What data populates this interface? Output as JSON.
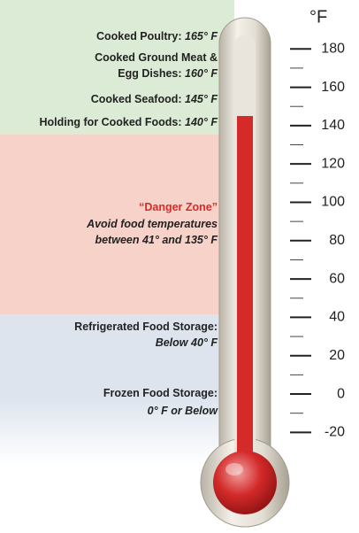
{
  "unit": "°F",
  "scale": {
    "ylim": [
      -30,
      190
    ],
    "ticks": [
      180,
      160,
      140,
      120,
      100,
      80,
      60,
      40,
      20,
      0,
      -20
    ],
    "minor_ticks": [
      170,
      150,
      130,
      110,
      90,
      70,
      50,
      30,
      10,
      -10
    ],
    "mercury": 145,
    "mercury_color": "#d42a2a"
  },
  "zones": [
    {
      "color": "#dcebd5",
      "lines": [
        {
          "text": "Cooked Poultry:",
          "temp": "165° F"
        },
        {
          "text": "Cooked Ground Meat &"
        },
        {
          "text": "Egg Dishes:",
          "temp": "160° F"
        },
        {
          "text": "Cooked Seafood:",
          "temp": "145° F"
        },
        {
          "text": "Holding for Cooked Foods:",
          "temp": "140° F"
        }
      ]
    },
    {
      "color": "#f7d2c8",
      "lines": [
        {
          "text": "“Danger Zone”",
          "color": "#d92a2a"
        },
        {
          "text": "Avoid food temperatures",
          "italic": true
        },
        {
          "text": "between 41° and 135° F",
          "italic": true
        }
      ]
    },
    {
      "color": "#dde4ee",
      "lines": [
        {
          "text": "Refrigerated Food Storage:"
        },
        {
          "text": "Below 40° F",
          "italic": true
        },
        {
          "text": "Frozen Food Storage:"
        },
        {
          "text": "0° F or Below",
          "italic": true
        }
      ]
    }
  ]
}
